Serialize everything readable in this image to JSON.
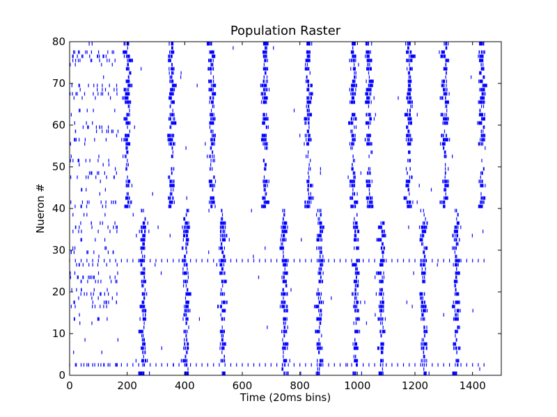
{
  "chart_data": {
    "type": "scatter",
    "title": "Population Raster",
    "xlabel": "Time (20ms bins)",
    "ylabel": "Nueron #",
    "xlim": [
      0,
      1500
    ],
    "ylim": [
      0,
      80
    ],
    "xticks": [
      0,
      200,
      400,
      600,
      800,
      1000,
      1200,
      1400
    ],
    "yticks": [
      0,
      10,
      20,
      30,
      40,
      50,
      60,
      70,
      80
    ],
    "marker": "|",
    "color": "#0000ff",
    "grid": false,
    "time_end": 1450,
    "series": [
      {
        "neurons": [
          40,
          79
        ],
        "burst_centers": [
          200,
          355,
          495,
          680,
          830,
          985,
          1040,
          1180,
          1305,
          1435
        ],
        "onset_activity_until": 170
      },
      {
        "neurons": [
          0,
          39
        ],
        "burst_centers": [
          255,
          405,
          530,
          745,
          870,
          995,
          1085,
          1230,
          1345
        ],
        "tonic_neurons": [
          2,
          27
        ],
        "onset_activity_until": 170
      }
    ]
  }
}
